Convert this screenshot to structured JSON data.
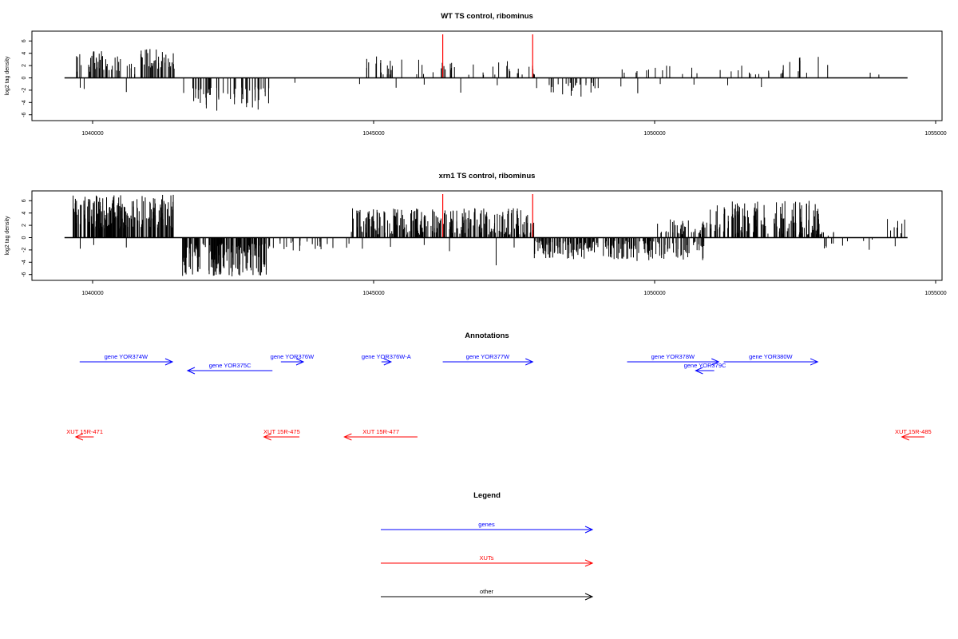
{
  "chart_data": [
    {
      "type": "bar",
      "title": "WT TS control, ribominus",
      "ylabel": "log2 tag density",
      "xlim": [
        1039500,
        1054500
      ],
      "ylim": [
        -6,
        6
      ],
      "x_ticks": [
        1040000,
        1045000,
        1050000,
        1055000
      ],
      "y_ticks": [
        -6,
        -4,
        -2,
        0,
        2,
        4,
        6
      ],
      "highlight_positions": [
        1046230,
        1047830
      ],
      "highlight_color": "#ff0000",
      "bar_color": "#000000",
      "regions": [
        {
          "start": 1039700,
          "end": 1040500,
          "min": 1.0,
          "max": 4.5,
          "density": 40
        },
        {
          "start": 1040500,
          "end": 1040800,
          "min": 0.5,
          "max": 2.5,
          "density": 6
        },
        {
          "start": 1040800,
          "end": 1041450,
          "min": 1.5,
          "max": 5.0,
          "density": 40
        },
        {
          "start": 1041600,
          "end": 1043150,
          "min": -5.5,
          "max": -1.5,
          "density": 55
        },
        {
          "start": 1044600,
          "end": 1046150,
          "min": 0.5,
          "max": 3.5,
          "density": 22
        },
        {
          "start": 1046150,
          "end": 1046400,
          "min": 0.5,
          "max": 3.0,
          "density": 8
        },
        {
          "start": 1046400,
          "end": 1047900,
          "min": 0.5,
          "max": 3.2,
          "density": 22
        },
        {
          "start": 1047900,
          "end": 1049000,
          "min": -3.2,
          "max": -0.8,
          "density": 25
        },
        {
          "start": 1049000,
          "end": 1050600,
          "min": 0.3,
          "max": 2.0,
          "density": 12
        },
        {
          "start": 1050600,
          "end": 1052300,
          "min": 0.5,
          "max": 2.6,
          "density": 18
        },
        {
          "start": 1052300,
          "end": 1053200,
          "min": 0.8,
          "max": 3.5,
          "density": 8
        },
        {
          "start": 1053800,
          "end": 1054200,
          "min": 0.5,
          "max": 1.0,
          "density": 2
        }
      ],
      "sparse_negatives": [
        {
          "x": 1039780,
          "y": -1.6
        },
        {
          "x": 1039850,
          "y": -1.8
        },
        {
          "x": 1040600,
          "y": -2.3
        },
        {
          "x": 1043600,
          "y": -0.8
        },
        {
          "x": 1044750,
          "y": -1.0
        },
        {
          "x": 1045400,
          "y": -1.6
        },
        {
          "x": 1045900,
          "y": -1.1
        },
        {
          "x": 1046550,
          "y": -2.4
        },
        {
          "x": 1047200,
          "y": -1.2
        },
        {
          "x": 1049400,
          "y": -1.4
        },
        {
          "x": 1049700,
          "y": -2.5
        },
        {
          "x": 1050100,
          "y": -1.0
        },
        {
          "x": 1050700,
          "y": -1.1
        },
        {
          "x": 1051300,
          "y": -1.2
        },
        {
          "x": 1051900,
          "y": -1.5
        }
      ]
    },
    {
      "type": "bar",
      "title": "xrn1 TS control, ribominus",
      "ylabel": "log2 tag density",
      "xlim": [
        1039500,
        1054500
      ],
      "ylim": [
        -6,
        6
      ],
      "x_ticks": [
        1040000,
        1045000,
        1050000,
        1055000
      ],
      "y_ticks": [
        -6,
        -4,
        -2,
        0,
        2,
        4,
        6
      ],
      "highlight_positions": [
        1046230,
        1047830
      ],
      "highlight_color": "#ff0000",
      "bar_color": "#000000",
      "regions": [
        {
          "start": 1039650,
          "end": 1041450,
          "min": 1.5,
          "max": 7.0,
          "density": 220
        },
        {
          "start": 1041600,
          "end": 1043150,
          "min": -6.3,
          "max": -1.0,
          "density": 170
        },
        {
          "start": 1043200,
          "end": 1044600,
          "min": -2.2,
          "max": -0.3,
          "density": 22
        },
        {
          "start": 1044600,
          "end": 1047850,
          "min": 0.5,
          "max": 4.8,
          "density": 260
        },
        {
          "start": 1047850,
          "end": 1049600,
          "min": -3.5,
          "max": -0.5,
          "density": 130
        },
        {
          "start": 1049600,
          "end": 1050900,
          "min": -3.8,
          "max": -0.5,
          "density": 70
        },
        {
          "start": 1050050,
          "end": 1050900,
          "min": 0.5,
          "max": 3.0,
          "density": 40
        },
        {
          "start": 1050900,
          "end": 1053000,
          "min": 0.5,
          "max": 6.0,
          "density": 150
        },
        {
          "start": 1053000,
          "end": 1054100,
          "min": -2.0,
          "max": -0.3,
          "density": 10
        },
        {
          "start": 1053000,
          "end": 1053300,
          "min": 0.3,
          "max": 1.0,
          "density": 4
        },
        {
          "start": 1054100,
          "end": 1054450,
          "min": 0.5,
          "max": 3.2,
          "density": 8
        }
      ],
      "sparse_negatives": [
        {
          "x": 1039780,
          "y": -1.8
        },
        {
          "x": 1040020,
          "y": -1.2
        },
        {
          "x": 1040600,
          "y": -1.6
        },
        {
          "x": 1044800,
          "y": -1.8
        },
        {
          "x": 1045300,
          "y": -1.5
        },
        {
          "x": 1045900,
          "y": -1.2
        },
        {
          "x": 1046350,
          "y": -2.2
        },
        {
          "x": 1047180,
          "y": -4.5
        },
        {
          "x": 1047500,
          "y": -1.6
        },
        {
          "x": 1054280,
          "y": -1.4
        }
      ]
    }
  ],
  "annotations": {
    "title": "Annotations",
    "xlim": [
      1039500,
      1054500
    ],
    "genes": [
      {
        "label": "gene YOR374W",
        "start": 1039770,
        "end": 1041420,
        "strand": "+",
        "row": 0
      },
      {
        "label": "gene YOR375C",
        "start": 1041690,
        "end": 1043200,
        "strand": "-",
        "row": 1
      },
      {
        "label": "gene YOR376W",
        "start": 1043350,
        "end": 1043750,
        "strand": "+",
        "row": 0
      },
      {
        "label": "gene YOR376W-A",
        "start": 1045140,
        "end": 1045310,
        "strand": "+",
        "row": 0
      },
      {
        "label": "gene YOR377W",
        "start": 1046230,
        "end": 1047830,
        "strand": "+",
        "row": 0
      },
      {
        "label": "gene YOR378W",
        "start": 1049510,
        "end": 1051140,
        "strand": "+",
        "row": 0
      },
      {
        "label": "gene YOR379C",
        "start": 1050730,
        "end": 1051060,
        "strand": "-",
        "row": 1
      },
      {
        "label": "gene YOR380W",
        "start": 1051230,
        "end": 1052900,
        "strand": "+",
        "row": 0
      }
    ],
    "xuts": [
      {
        "label": "XUT 15R-471",
        "start": 1039700,
        "end": 1040020,
        "strand": "-"
      },
      {
        "label": "XUT 15R-475",
        "start": 1043050,
        "end": 1043680,
        "strand": "-"
      },
      {
        "label": "XUT 15R-477",
        "start": 1044480,
        "end": 1045780,
        "strand": "-"
      },
      {
        "label": "XUT 15R-485",
        "start": 1054400,
        "end": 1054800,
        "strand": "-"
      }
    ],
    "gene_color": "#0000ff",
    "xut_color": "#ff0000"
  },
  "legend": {
    "title": "Legend",
    "items": [
      {
        "label": "genes",
        "color": "#0000ff"
      },
      {
        "label": "XUTs",
        "color": "#ff0000"
      },
      {
        "label": "other",
        "color": "#000000"
      }
    ]
  }
}
